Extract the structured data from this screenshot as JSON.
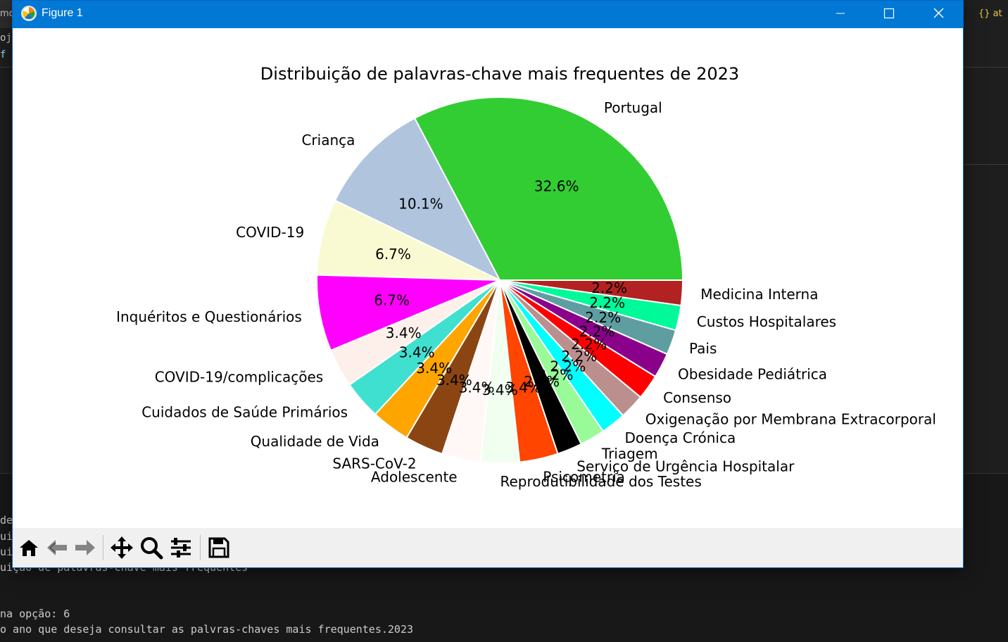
{
  "window": {
    "title": "Figure 1",
    "accent": "#0078d4"
  },
  "toolbar": {
    "tools": [
      "home-icon",
      "back-icon",
      "forward-icon",
      "pan-icon",
      "zoom-icon",
      "configure-subplots-icon",
      "save-icon"
    ]
  },
  "background": {
    "tab_left": "mo",
    "tab_right": "{} at",
    "code_lines": [
      "oje",
      "f"
    ],
    "terminal_lines": [
      "de",
      "ui",
      "ui",
      "uição de palavras-chave mais frequentes",
      "",
      "na opção: 6",
      "o ano que deseja consultar as palvras-chaves mais frequentes.2023"
    ]
  },
  "chart_data": {
    "type": "pie",
    "title": "Distribuição de palavras-chave mais frequentes de 2023",
    "start_angle_deg": 0,
    "direction": "counterclockwise",
    "slices": [
      {
        "label": "Portugal",
        "value": 32.6,
        "pct": "32.6%",
        "color": "#32cd32"
      },
      {
        "label": "Criança",
        "value": 10.1,
        "pct": "10.1%",
        "color": "#b0c4de"
      },
      {
        "label": "COVID-19",
        "value": 6.7,
        "pct": "6.7%",
        "color": "#fafad2"
      },
      {
        "label": "Inquéritos e Questionários",
        "value": 6.7,
        "pct": "6.7%",
        "color": "#ff00ff"
      },
      {
        "label": "COVID-19/complicações",
        "value": 3.4,
        "pct": "3.4%",
        "color": "#fdf0ea"
      },
      {
        "label": "Cuidados de Saúde Primários",
        "value": 3.4,
        "pct": "3.4%",
        "color": "#40e0d0"
      },
      {
        "label": "Qualidade de Vida",
        "value": 3.4,
        "pct": "3.4%",
        "color": "#ffa500"
      },
      {
        "label": "SARS-CoV-2",
        "value": 3.4,
        "pct": "3.4%",
        "color": "#8b4513"
      },
      {
        "label": "Adolescente",
        "value": 3.4,
        "pct": "3.4%",
        "color": "#fff8f6"
      },
      {
        "label": "Reprodutibilidade dos Testes",
        "value": 3.4,
        "pct": "3.4%",
        "color": "#f0fff0"
      },
      {
        "label": "Psicometria",
        "value": 3.4,
        "pct": "3.4%",
        "color": "#ff4500"
      },
      {
        "label": "Serviço de Urgência Hospitalar",
        "value": 2.2,
        "pct": "2.2%",
        "color": "#000000"
      },
      {
        "label": "Triagem",
        "value": 2.2,
        "pct": "2.2%",
        "color": "#98fb98"
      },
      {
        "label": "Doença Crónica",
        "value": 2.2,
        "pct": "2.2%",
        "color": "#00ffff"
      },
      {
        "label": "Oxigenação por Membrana Extracorporal",
        "value": 2.2,
        "pct": "2.2%",
        "color": "#bc8f8f"
      },
      {
        "label": "Consenso",
        "value": 2.2,
        "pct": "2.2%",
        "color": "#ff0000"
      },
      {
        "label": "Obesidade Pediátrica",
        "value": 2.2,
        "pct": "2.2%",
        "color": "#8b008b"
      },
      {
        "label": "Pais",
        "value": 2.2,
        "pct": "2.2%",
        "color": "#5f9ea0"
      },
      {
        "label": "Custos Hospitalares",
        "value": 2.2,
        "pct": "2.2%",
        "color": "#00fa9a"
      },
      {
        "label": "Medicina Interna",
        "value": 2.2,
        "pct": "2.2%",
        "color": "#b22222"
      }
    ]
  }
}
